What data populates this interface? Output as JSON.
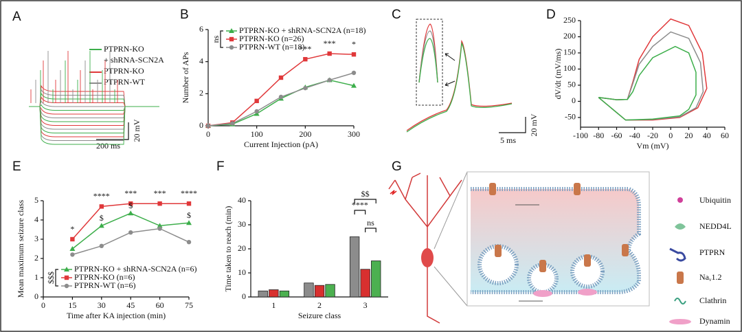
{
  "panel_labels": [
    "A",
    "B",
    "C",
    "D",
    "E",
    "F",
    "G"
  ],
  "panel_a": {
    "legend": [
      "PTPRN-KO",
      "+ shRNA-SCN2A",
      "PTPRN-KO",
      "PTPRN-WT"
    ],
    "scale_x": "200 ms",
    "scale_y": "20 mV"
  },
  "panel_c": {
    "scale_x": "5 ms",
    "scale_y": "20 mV"
  },
  "panel_g": {
    "legend": [
      "Ubiquitin",
      "NEDD4L",
      "PTPRN"
    ],
    "channel": {
      "base": "Na",
      "sub": "v",
      "suffix": "1.2"
    },
    "legend2": [
      "Clathrin",
      "Dynamin"
    ]
  },
  "chart_data": [
    {
      "type": "line",
      "x": [
        0,
        50,
        100,
        150,
        200,
        250,
        300
      ],
      "xlim": [
        0,
        300
      ],
      "xticks": [
        0,
        100,
        200,
        300
      ],
      "ylim": [
        0,
        6
      ],
      "yticks": [
        0,
        2,
        4,
        6
      ],
      "xlabel": "Current Injection (pA)",
      "ylabel": "Number of APs",
      "legend": "upper left",
      "legend_note": "ns",
      "series": [
        {
          "name": "PTPRN-KO + shRNA-SCN2A (n=18)",
          "color": "#3cae4a",
          "marker": "triangle",
          "values": [
            0,
            0.1,
            0.75,
            1.7,
            2.4,
            2.85,
            2.5
          ]
        },
        {
          "name": "PTPRN-KO (n=26)",
          "color": "#e0383a",
          "marker": "square",
          "values": [
            0,
            0.2,
            1.55,
            3.0,
            4.15,
            4.5,
            4.45
          ]
        },
        {
          "name": "PTPRN-WT (n=18)",
          "color": "#8c8c8c",
          "marker": "circle",
          "values": [
            0,
            0.15,
            0.9,
            1.8,
            2.35,
            2.85,
            3.3
          ]
        }
      ],
      "annotations": [
        {
          "text": "***",
          "x": 200
        },
        {
          "text": "***",
          "x": 250
        },
        {
          "text": "*",
          "x": 300
        }
      ]
    },
    {
      "type": "line",
      "xlim": [
        -100,
        60
      ],
      "xticks": [
        -100,
        -80,
        -60,
        -40,
        -20,
        0,
        20,
        40,
        60
      ],
      "ylim": [
        -80,
        250
      ],
      "yticks": [
        -50,
        0,
        50,
        100,
        150,
        200,
        250
      ],
      "xlabel": "Vm (mV)",
      "ylabel": "dV/dt (mV/ms)",
      "series": [
        {
          "color": "#e0383a",
          "x": [
            -80,
            -60,
            -48,
            -42,
            -35,
            -20,
            0,
            20,
            35,
            40,
            30,
            10,
            -20,
            -50,
            -80
          ],
          "values": [
            12,
            5,
            6,
            60,
            130,
            200,
            255,
            235,
            150,
            40,
            -20,
            -50,
            -58,
            -58,
            12
          ]
        },
        {
          "color": "#8c8c8c",
          "x": [
            -80,
            -60,
            -48,
            -42,
            -35,
            -20,
            0,
            20,
            33,
            36,
            28,
            10,
            -20,
            -50,
            -80
          ],
          "values": [
            12,
            5,
            6,
            55,
            115,
            170,
            215,
            195,
            120,
            30,
            -20,
            -48,
            -56,
            -58,
            12
          ]
        },
        {
          "color": "#3cae4a",
          "x": [
            -80,
            -60,
            -48,
            -42,
            -35,
            -20,
            5,
            20,
            28,
            28,
            20,
            10,
            -20,
            -50,
            -80
          ],
          "values": [
            12,
            5,
            6,
            30,
            80,
            135,
            170,
            150,
            90,
            20,
            -25,
            -45,
            -55,
            -58,
            12
          ]
        }
      ]
    },
    {
      "type": "line",
      "x": [
        15,
        30,
        45,
        60,
        75
      ],
      "xlim": [
        0,
        75
      ],
      "xticks": [
        0,
        15,
        30,
        45,
        60,
        75
      ],
      "ylim": [
        0,
        5
      ],
      "yticks": [
        0,
        1,
        2,
        3,
        4,
        5
      ],
      "xlabel": "Time after KA injection (min)",
      "ylabel": "Mean maximum seizure class",
      "legend": "lower left",
      "legend_note": "$$$",
      "series": [
        {
          "name": "PTPRN-KO + shRNA-SCN2A (n=6)",
          "color": "#3cae4a",
          "marker": "triangle",
          "values": [
            2.5,
            3.7,
            4.35,
            3.7,
            3.85
          ]
        },
        {
          "name": "PTPRN-KO (n=6)",
          "color": "#e0383a",
          "marker": "square",
          "values": [
            3.0,
            4.7,
            4.85,
            4.85,
            4.85
          ]
        },
        {
          "name": "PTPRN-WT (n=6)",
          "color": "#8c8c8c",
          "marker": "circle",
          "values": [
            2.2,
            2.65,
            3.35,
            3.55,
            2.85
          ]
        }
      ],
      "annotations": [
        {
          "text": "*",
          "x": 15
        },
        {
          "text": "****",
          "x": 30
        },
        {
          "text": "***",
          "x": 45
        },
        {
          "text": "***",
          "x": 60
        },
        {
          "text": "****",
          "x": 75
        },
        {
          "text": "$",
          "x": 30
        },
        {
          "text": "$",
          "x": 45
        },
        {
          "text": "$",
          "x": 75
        }
      ]
    },
    {
      "type": "bar",
      "categories": [
        "1",
        "2",
        "3"
      ],
      "ylim": [
        0,
        40
      ],
      "yticks": [
        0,
        10,
        20,
        30,
        40
      ],
      "xlabel": "Seizure class",
      "ylabel": "Time taken to reach (min)",
      "series": [
        {
          "color": "#8c8c8c",
          "values": [
            2.5,
            5.8,
            25
          ]
        },
        {
          "color": "#d8302f",
          "values": [
            3,
            4.8,
            11.5
          ]
        },
        {
          "color": "#4cb050",
          "values": [
            2.5,
            5.2,
            15
          ]
        }
      ],
      "annotations": [
        {
          "text": "****"
        },
        {
          "text": "$$"
        },
        {
          "text": "ns"
        }
      ]
    }
  ]
}
